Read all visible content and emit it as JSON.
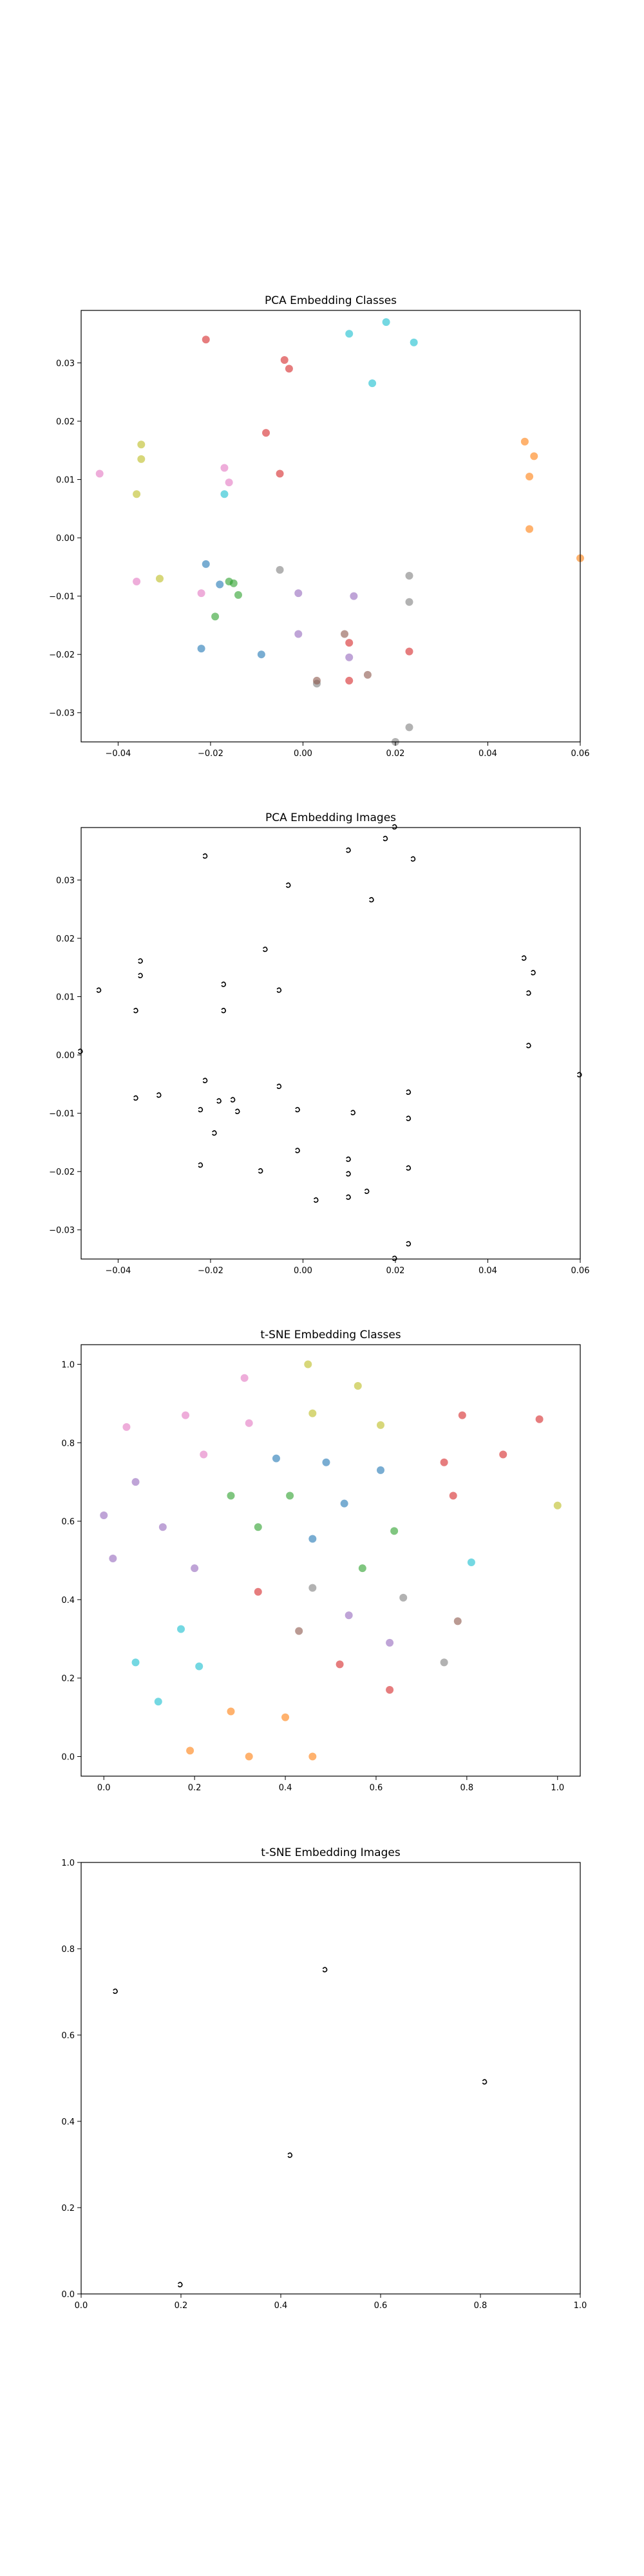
{
  "chart_data": [
    {
      "type": "scatter",
      "title": "PCA Embedding Classes",
      "xlabel": "",
      "ylabel": "",
      "xlim": [
        -0.048,
        0.06
      ],
      "ylim": [
        -0.035,
        0.039
      ],
      "xticks": [
        "−0.04",
        "−0.02",
        "0.00",
        "0.02",
        "0.04",
        "0.06"
      ],
      "xtick_values": [
        -0.04,
        -0.02,
        0.0,
        0.02,
        0.04,
        0.06
      ],
      "yticks": [
        "−0.03",
        "−0.02",
        "−0.01",
        "0.00",
        "0.01",
        "0.02",
        "0.03"
      ],
      "ytick_values": [
        -0.03,
        -0.02,
        -0.01,
        0.0,
        0.01,
        0.02,
        0.03
      ],
      "grid": false,
      "marker": "dot",
      "points": [
        {
          "x": -0.021,
          "y": 0.034,
          "color": "#d62728"
        },
        {
          "x": -0.004,
          "y": 0.0305,
          "color": "#d62728"
        },
        {
          "x": -0.003,
          "y": 0.029,
          "color": "#d62728"
        },
        {
          "x": -0.008,
          "y": 0.018,
          "color": "#d62728"
        },
        {
          "x": -0.005,
          "y": 0.011,
          "color": "#d62728"
        },
        {
          "x": 0.018,
          "y": 0.037,
          "color": "#17becf"
        },
        {
          "x": 0.01,
          "y": 0.035,
          "color": "#17becf"
        },
        {
          "x": 0.024,
          "y": 0.0335,
          "color": "#17becf"
        },
        {
          "x": 0.015,
          "y": 0.0265,
          "color": "#17becf"
        },
        {
          "x": -0.017,
          "y": 0.0075,
          "color": "#17becf"
        },
        {
          "x": -0.035,
          "y": 0.016,
          "color": "#bcbd22"
        },
        {
          "x": -0.035,
          "y": 0.0135,
          "color": "#bcbd22"
        },
        {
          "x": -0.036,
          "y": 0.0075,
          "color": "#bcbd22"
        },
        {
          "x": -0.031,
          "y": -0.007,
          "color": "#bcbd22"
        },
        {
          "x": -0.044,
          "y": 0.011,
          "color": "#e377c2"
        },
        {
          "x": -0.017,
          "y": 0.012,
          "color": "#e377c2"
        },
        {
          "x": -0.016,
          "y": 0.0095,
          "color": "#e377c2"
        },
        {
          "x": -0.036,
          "y": -0.0075,
          "color": "#e377c2"
        },
        {
          "x": -0.022,
          "y": -0.0095,
          "color": "#e377c2"
        },
        {
          "x": 0.048,
          "y": 0.0165,
          "color": "#ff7f0e"
        },
        {
          "x": 0.05,
          "y": 0.014,
          "color": "#ff7f0e"
        },
        {
          "x": 0.049,
          "y": 0.0105,
          "color": "#ff7f0e"
        },
        {
          "x": 0.049,
          "y": 0.0015,
          "color": "#ff7f0e"
        },
        {
          "x": 0.06,
          "y": -0.0035,
          "color": "#ff7f0e"
        },
        {
          "x": -0.021,
          "y": -0.0045,
          "color": "#1f77b4"
        },
        {
          "x": -0.022,
          "y": -0.019,
          "color": "#1f77b4"
        },
        {
          "x": -0.009,
          "y": -0.02,
          "color": "#1f77b4"
        },
        {
          "x": -0.018,
          "y": -0.008,
          "color": "#1f77b4"
        },
        {
          "x": -0.016,
          "y": -0.0075,
          "color": "#2ca02c"
        },
        {
          "x": -0.015,
          "y": -0.0078,
          "color": "#2ca02c"
        },
        {
          "x": -0.014,
          "y": -0.0098,
          "color": "#2ca02c"
        },
        {
          "x": -0.019,
          "y": -0.0135,
          "color": "#2ca02c"
        },
        {
          "x": -0.005,
          "y": -0.0055,
          "color": "#7f7f7f"
        },
        {
          "x": 0.023,
          "y": -0.0065,
          "color": "#7f7f7f"
        },
        {
          "x": 0.023,
          "y": -0.011,
          "color": "#7f7f7f"
        },
        {
          "x": 0.003,
          "y": -0.025,
          "color": "#7f7f7f"
        },
        {
          "x": 0.023,
          "y": -0.0325,
          "color": "#7f7f7f"
        },
        {
          "x": -0.001,
          "y": -0.0095,
          "color": "#9467bd"
        },
        {
          "x": 0.011,
          "y": -0.01,
          "color": "#9467bd"
        },
        {
          "x": -0.001,
          "y": -0.0165,
          "color": "#9467bd"
        },
        {
          "x": 0.01,
          "y": -0.0205,
          "color": "#9467bd"
        },
        {
          "x": 0.014,
          "y": -0.0235,
          "color": "#8c564b"
        },
        {
          "x": 0.009,
          "y": -0.0165,
          "color": "#8c564b"
        },
        {
          "x": 0.003,
          "y": -0.0245,
          "color": "#8c564b"
        },
        {
          "x": 0.01,
          "y": -0.018,
          "color": "#d62728"
        },
        {
          "x": 0.023,
          "y": -0.0195,
          "color": "#d62728"
        },
        {
          "x": 0.01,
          "y": -0.0245,
          "color": "#d62728"
        },
        {
          "x": 0.02,
          "y": -0.035,
          "color": "#7f7f7f"
        }
      ]
    },
    {
      "type": "scatter",
      "title": "PCA Embedding Images",
      "xlabel": "",
      "ylabel": "",
      "xlim": [
        -0.048,
        0.06
      ],
      "ylim": [
        -0.035,
        0.039
      ],
      "xticks": [
        "−0.04",
        "−0.02",
        "0.00",
        "0.02",
        "0.04",
        "0.06"
      ],
      "xtick_values": [
        -0.04,
        -0.02,
        0.0,
        0.02,
        0.04,
        0.06
      ],
      "yticks": [
        "−0.03",
        "−0.02",
        "−0.01",
        "0.00",
        "0.01",
        "0.02",
        "0.03"
      ],
      "ytick_values": [
        -0.03,
        -0.02,
        -0.01,
        0.0,
        0.01,
        0.02,
        0.03
      ],
      "grid": false,
      "marker": "glyph",
      "points": [
        {
          "x": -0.021,
          "y": 0.034
        },
        {
          "x": -0.003,
          "y": 0.029
        },
        {
          "x": 0.01,
          "y": 0.035
        },
        {
          "x": 0.018,
          "y": 0.037
        },
        {
          "x": 0.024,
          "y": 0.0335
        },
        {
          "x": 0.015,
          "y": 0.0265
        },
        {
          "x": 0.02,
          "y": 0.039
        },
        {
          "x": -0.008,
          "y": 0.018
        },
        {
          "x": -0.035,
          "y": 0.016
        },
        {
          "x": -0.035,
          "y": 0.0135
        },
        {
          "x": -0.044,
          "y": 0.011
        },
        {
          "x": -0.017,
          "y": 0.012
        },
        {
          "x": -0.005,
          "y": 0.011
        },
        {
          "x": -0.036,
          "y": 0.0075
        },
        {
          "x": -0.017,
          "y": 0.0075
        },
        {
          "x": 0.048,
          "y": 0.0165
        },
        {
          "x": 0.05,
          "y": 0.014
        },
        {
          "x": 0.049,
          "y": 0.0105
        },
        {
          "x": 0.049,
          "y": 0.0015
        },
        {
          "x": -0.048,
          "y": 0.0005
        },
        {
          "x": 0.06,
          "y": -0.0035
        },
        {
          "x": -0.021,
          "y": -0.0045
        },
        {
          "x": -0.005,
          "y": -0.0055
        },
        {
          "x": -0.036,
          "y": -0.0075
        },
        {
          "x": -0.031,
          "y": -0.007
        },
        {
          "x": -0.018,
          "y": -0.008
        },
        {
          "x": -0.015,
          "y": -0.0078
        },
        {
          "x": -0.022,
          "y": -0.0095
        },
        {
          "x": -0.014,
          "y": -0.0098
        },
        {
          "x": -0.001,
          "y": -0.0095
        },
        {
          "x": 0.011,
          "y": -0.01
        },
        {
          "x": 0.023,
          "y": -0.0065
        },
        {
          "x": 0.023,
          "y": -0.011
        },
        {
          "x": -0.019,
          "y": -0.0135
        },
        {
          "x": -0.001,
          "y": -0.0165
        },
        {
          "x": 0.01,
          "y": -0.018
        },
        {
          "x": -0.022,
          "y": -0.019
        },
        {
          "x": -0.009,
          "y": -0.02
        },
        {
          "x": 0.01,
          "y": -0.0205
        },
        {
          "x": 0.023,
          "y": -0.0195
        },
        {
          "x": 0.014,
          "y": -0.0235
        },
        {
          "x": 0.003,
          "y": -0.025
        },
        {
          "x": 0.01,
          "y": -0.0245
        },
        {
          "x": 0.023,
          "y": -0.0325
        },
        {
          "x": 0.02,
          "y": -0.035
        }
      ]
    },
    {
      "type": "scatter",
      "title": "t-SNE Embedding Classes",
      "xlabel": "",
      "ylabel": "",
      "xlim": [
        -0.05,
        1.05
      ],
      "ylim": [
        -0.05,
        1.05
      ],
      "xticks": [
        "0.0",
        "0.2",
        "0.4",
        "0.6",
        "0.8",
        "1.0"
      ],
      "xtick_values": [
        0.0,
        0.2,
        0.4,
        0.6,
        0.8,
        1.0
      ],
      "yticks": [
        "0.0",
        "0.2",
        "0.4",
        "0.6",
        "0.8",
        "1.0"
      ],
      "ytick_values": [
        0.0,
        0.2,
        0.4,
        0.6,
        0.8,
        1.0
      ],
      "grid": false,
      "marker": "dot",
      "points": [
        {
          "x": 0.45,
          "y": 1.0,
          "color": "#bcbd22"
        },
        {
          "x": 0.31,
          "y": 0.965,
          "color": "#e377c2"
        },
        {
          "x": 0.56,
          "y": 0.945,
          "color": "#bcbd22"
        },
        {
          "x": 0.18,
          "y": 0.87,
          "color": "#e377c2"
        },
        {
          "x": 0.46,
          "y": 0.875,
          "color": "#bcbd22"
        },
        {
          "x": 0.32,
          "y": 0.85,
          "color": "#e377c2"
        },
        {
          "x": 0.61,
          "y": 0.845,
          "color": "#bcbd22"
        },
        {
          "x": 0.79,
          "y": 0.87,
          "color": "#d62728"
        },
        {
          "x": 0.96,
          "y": 0.86,
          "color": "#d62728"
        },
        {
          "x": 0.05,
          "y": 0.84,
          "color": "#e377c2"
        },
        {
          "x": 0.22,
          "y": 0.77,
          "color": "#e377c2"
        },
        {
          "x": 0.88,
          "y": 0.77,
          "color": "#d62728"
        },
        {
          "x": 0.38,
          "y": 0.76,
          "color": "#1f77b4"
        },
        {
          "x": 0.49,
          "y": 0.75,
          "color": "#1f77b4"
        },
        {
          "x": 0.75,
          "y": 0.75,
          "color": "#d62728"
        },
        {
          "x": 0.61,
          "y": 0.73,
          "color": "#1f77b4"
        },
        {
          "x": 0.07,
          "y": 0.7,
          "color": "#9467bd"
        },
        {
          "x": 1.0,
          "y": 0.64,
          "color": "#bcbd22"
        },
        {
          "x": 0.28,
          "y": 0.665,
          "color": "#2ca02c"
        },
        {
          "x": 0.41,
          "y": 0.665,
          "color": "#2ca02c"
        },
        {
          "x": 0.77,
          "y": 0.665,
          "color": "#d62728"
        },
        {
          "x": 0.53,
          "y": 0.645,
          "color": "#1f77b4"
        },
        {
          "x": 0.0,
          "y": 0.615,
          "color": "#9467bd"
        },
        {
          "x": 0.13,
          "y": 0.585,
          "color": "#9467bd"
        },
        {
          "x": 0.34,
          "y": 0.585,
          "color": "#2ca02c"
        },
        {
          "x": 0.64,
          "y": 0.575,
          "color": "#2ca02c"
        },
        {
          "x": 0.46,
          "y": 0.555,
          "color": "#1f77b4"
        },
        {
          "x": 0.02,
          "y": 0.505,
          "color": "#9467bd"
        },
        {
          "x": 0.81,
          "y": 0.495,
          "color": "#17becf"
        },
        {
          "x": 0.2,
          "y": 0.48,
          "color": "#9467bd"
        },
        {
          "x": 0.57,
          "y": 0.48,
          "color": "#2ca02c"
        },
        {
          "x": 0.46,
          "y": 0.43,
          "color": "#7f7f7f"
        },
        {
          "x": 0.34,
          "y": 0.42,
          "color": "#d62728"
        },
        {
          "x": 0.66,
          "y": 0.405,
          "color": "#7f7f7f"
        },
        {
          "x": 0.54,
          "y": 0.36,
          "color": "#9467bd"
        },
        {
          "x": 0.78,
          "y": 0.345,
          "color": "#8c564b"
        },
        {
          "x": 0.17,
          "y": 0.325,
          "color": "#17becf"
        },
        {
          "x": 0.43,
          "y": 0.32,
          "color": "#8c564b"
        },
        {
          "x": 0.63,
          "y": 0.29,
          "color": "#9467bd"
        },
        {
          "x": 0.07,
          "y": 0.24,
          "color": "#17becf"
        },
        {
          "x": 0.75,
          "y": 0.24,
          "color": "#7f7f7f"
        },
        {
          "x": 0.52,
          "y": 0.235,
          "color": "#d62728"
        },
        {
          "x": 0.21,
          "y": 0.23,
          "color": "#17becf"
        },
        {
          "x": 0.63,
          "y": 0.17,
          "color": "#d62728"
        },
        {
          "x": 0.12,
          "y": 0.14,
          "color": "#17becf"
        },
        {
          "x": 0.28,
          "y": 0.115,
          "color": "#ff7f0e"
        },
        {
          "x": 0.4,
          "y": 0.1,
          "color": "#ff7f0e"
        },
        {
          "x": 0.19,
          "y": 0.015,
          "color": "#ff7f0e"
        },
        {
          "x": 0.32,
          "y": 0.0,
          "color": "#ff7f0e"
        },
        {
          "x": 0.46,
          "y": 0.0,
          "color": "#ff7f0e"
        }
      ]
    },
    {
      "type": "scatter",
      "title": "t-SNE Embedding Images",
      "xlabel": "",
      "ylabel": "",
      "xlim": [
        0.0,
        1.0
      ],
      "ylim": [
        0.0,
        1.0
      ],
      "xticks": [
        "0.0",
        "0.2",
        "0.4",
        "0.6",
        "0.8",
        "1.0"
      ],
      "xtick_values": [
        0.0,
        0.2,
        0.4,
        0.6,
        0.8,
        1.0
      ],
      "yticks": [
        "0.0",
        "0.2",
        "0.4",
        "0.6",
        "0.8",
        "1.0"
      ],
      "ytick_values": [
        0.0,
        0.2,
        0.4,
        0.6,
        0.8,
        1.0
      ],
      "grid": false,
      "marker": "glyph",
      "points": [
        {
          "x": 0.49,
          "y": 0.75
        },
        {
          "x": 0.07,
          "y": 0.7
        },
        {
          "x": 0.81,
          "y": 0.49
        },
        {
          "x": 0.42,
          "y": 0.32
        },
        {
          "x": 0.2,
          "y": 0.02
        }
      ]
    }
  ]
}
